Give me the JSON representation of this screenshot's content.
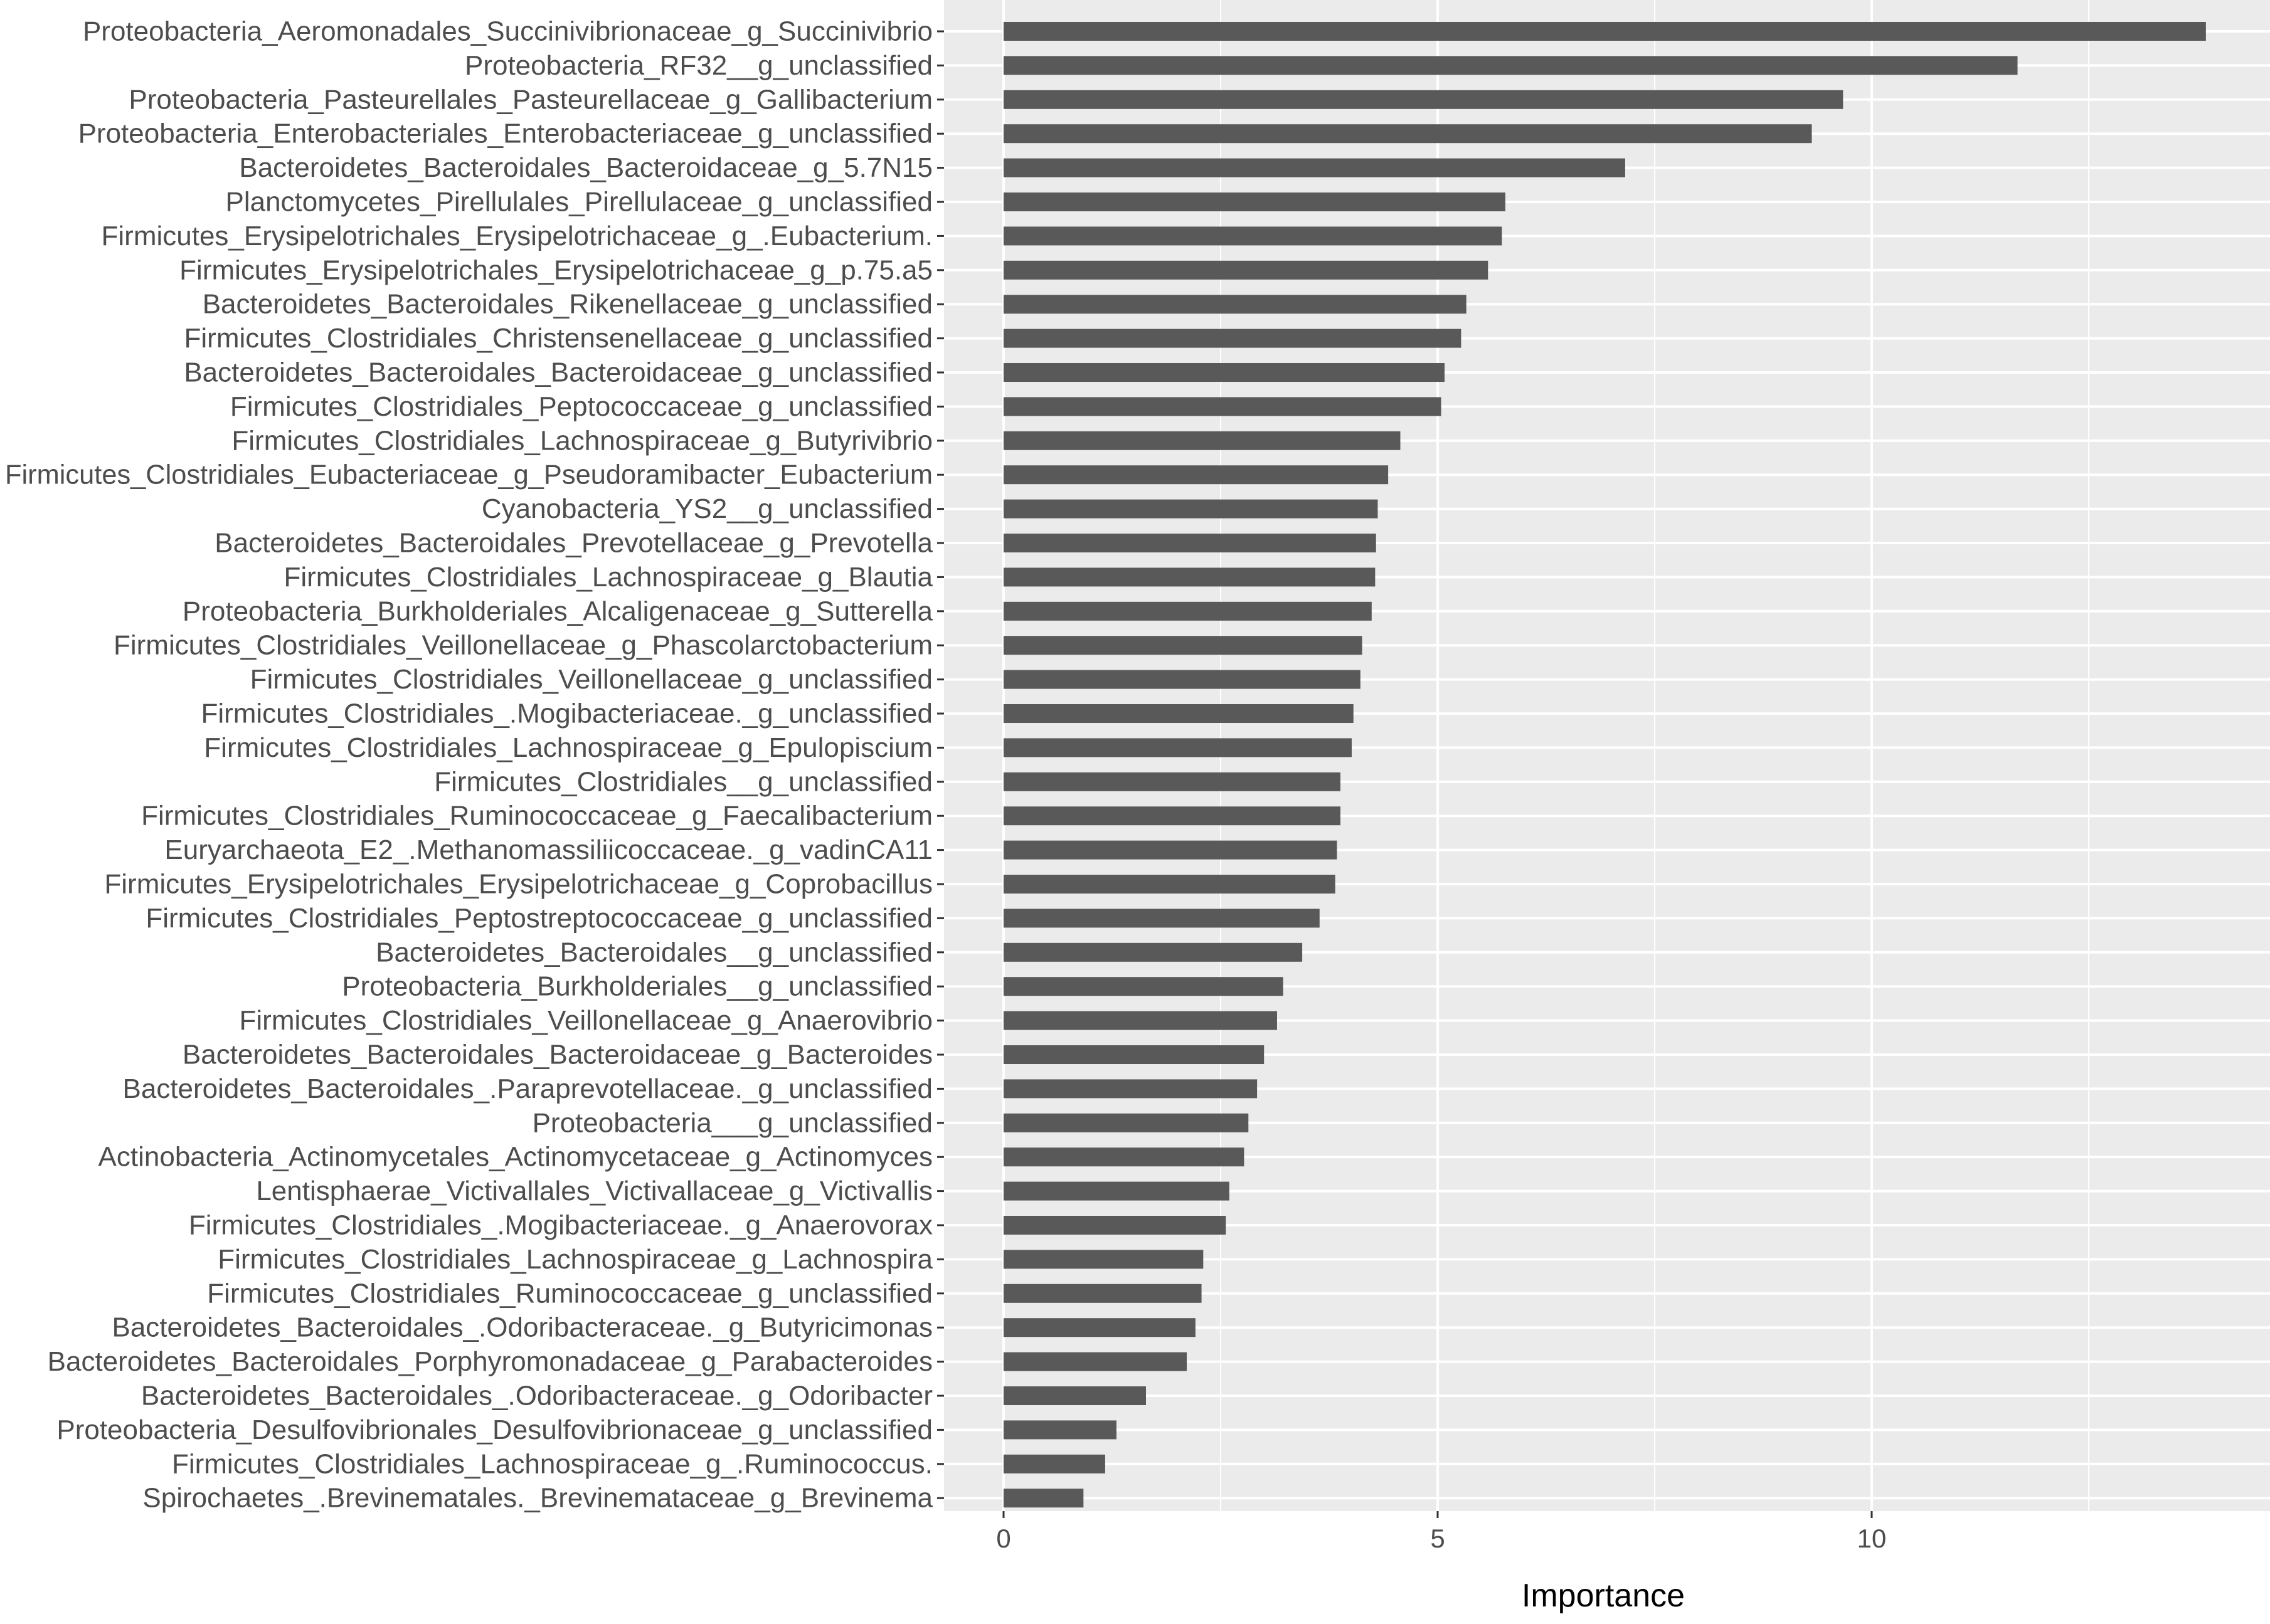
{
  "chart_data": {
    "type": "bar",
    "orientation": "horizontal",
    "title": "",
    "xlabel": "Importance",
    "ylabel": "",
    "xlim": [
      -1.7,
      14.5
    ],
    "xticks": [
      0,
      5,
      10
    ],
    "xtick_labels": [
      "0",
      "5",
      "10"
    ],
    "grid": true,
    "legend": "none",
    "colors": {
      "bar": "#595959",
      "panel": "#ebebeb",
      "gridline": "#ffffff",
      "text": "#4d4d4d"
    },
    "categories": [
      "Proteobacteria_Aeromonadales_Succinivibrionaceae_g_Succinivibrio",
      "Proteobacteria_RF32__g_unclassified",
      "Proteobacteria_Pasteurellales_Pasteurellaceae_g_Gallibacterium",
      "Proteobacteria_Enterobacteriales_Enterobacteriaceae_g_unclassified",
      "Bacteroidetes_Bacteroidales_Bacteroidaceae_g_5.7N15",
      "Planctomycetes_Pirellulales_Pirellulaceae_g_unclassified",
      "Firmicutes_Erysipelotrichales_Erysipelotrichaceae_g_.Eubacterium.",
      "Firmicutes_Erysipelotrichales_Erysipelotrichaceae_g_p.75.a5",
      "Bacteroidetes_Bacteroidales_Rikenellaceae_g_unclassified",
      "Firmicutes_Clostridiales_Christensenellaceae_g_unclassified",
      "Bacteroidetes_Bacteroidales_Bacteroidaceae_g_unclassified",
      "Firmicutes_Clostridiales_Peptococcaceae_g_unclassified",
      "Firmicutes_Clostridiales_Lachnospiraceae_g_Butyrivibrio",
      "Firmicutes_Clostridiales_Eubacteriaceae_g_Pseudoramibacter_Eubacterium",
      "Cyanobacteria_YS2__g_unclassified",
      "Bacteroidetes_Bacteroidales_Prevotellaceae_g_Prevotella",
      "Firmicutes_Clostridiales_Lachnospiraceae_g_Blautia",
      "Proteobacteria_Burkholderiales_Alcaligenaceae_g_Sutterella",
      "Firmicutes_Clostridiales_Veillonellaceae_g_Phascolarctobacterium",
      "Firmicutes_Clostridiales_Veillonellaceae_g_unclassified",
      "Firmicutes_Clostridiales_.Mogibacteriaceae._g_unclassified",
      "Firmicutes_Clostridiales_Lachnospiraceae_g_Epulopiscium",
      "Firmicutes_Clostridiales__g_unclassified",
      "Firmicutes_Clostridiales_Ruminococcaceae_g_Faecalibacterium",
      "Euryarchaeota_E2_.Methanomassiliicoccaceae._g_vadinCA11",
      "Firmicutes_Erysipelotrichales_Erysipelotrichaceae_g_Coprobacillus",
      "Firmicutes_Clostridiales_Peptostreptococcaceae_g_unclassified",
      "Bacteroidetes_Bacteroidales__g_unclassified",
      "Proteobacteria_Burkholderiales__g_unclassified",
      "Firmicutes_Clostridiales_Veillonellaceae_g_Anaerovibrio",
      "Bacteroidetes_Bacteroidales_Bacteroidaceae_g_Bacteroides",
      "Bacteroidetes_Bacteroidales_.Paraprevotellaceae._g_unclassified",
      "Proteobacteria___g_unclassified",
      "Actinobacteria_Actinomycetales_Actinomycetaceae_g_Actinomyces",
      "Lentisphaerae_Victivallales_Victivallaceae_g_Victivallis",
      "Firmicutes_Clostridiales_.Mogibacteriaceae._g_Anaerovorax",
      "Firmicutes_Clostridiales_Lachnospiraceae_g_Lachnospira",
      "Firmicutes_Clostridiales_Ruminococcaceae_g_unclassified",
      "Bacteroidetes_Bacteroidales_.Odoribacteraceae._g_Butyricimonas",
      "Bacteroidetes_Bacteroidales_Porphyromonadaceae_g_Parabacteroides",
      "Bacteroidetes_Bacteroidales_.Odoribacteraceae._g_Odoribacter",
      "Proteobacteria_Desulfovibrionales_Desulfovibrionaceae_g_unclassified",
      "Firmicutes_Clostridiales_Lachnospiraceae_g_.Ruminococcus.",
      "Spirochaetes_.Brevinematales._Brevinemataceae_g_Brevinema"
    ],
    "values": [
      13.85,
      11.68,
      9.67,
      9.31,
      7.16,
      5.78,
      5.74,
      5.58,
      5.33,
      5.27,
      5.08,
      5.04,
      4.57,
      4.43,
      4.31,
      4.29,
      4.28,
      4.24,
      4.13,
      4.11,
      4.03,
      4.01,
      3.88,
      3.88,
      3.84,
      3.82,
      3.64,
      3.44,
      3.22,
      3.15,
      3.0,
      2.92,
      2.82,
      2.77,
      2.6,
      2.56,
      2.3,
      2.28,
      2.21,
      2.11,
      1.64,
      1.3,
      1.17,
      0.92
    ]
  }
}
